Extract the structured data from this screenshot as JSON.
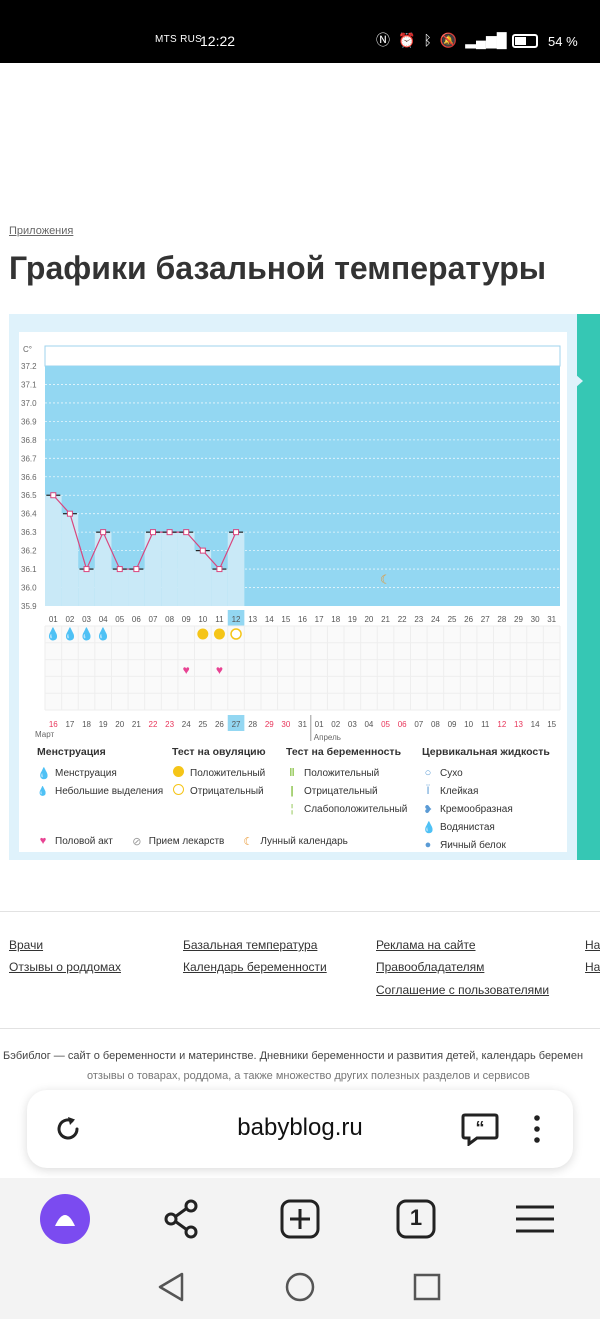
{
  "status_bar": {
    "carrier": "MTS RUS",
    "time": "12:22",
    "battery": "54 %"
  },
  "page": {
    "breadcrumb": "Приложения",
    "title": "Графики базальной температуры"
  },
  "chart_data": {
    "type": "line",
    "title": "",
    "ylabel": "C°",
    "ylim": [
      35.9,
      37.2
    ],
    "y_ticks": [
      "37.2",
      "37.1",
      "37.0",
      "36.9",
      "36.8",
      "36.7",
      "36.6",
      "36.5",
      "36.4",
      "36.3",
      "36.2",
      "36.1",
      "36.0",
      "35.9"
    ],
    "x_days": [
      "01",
      "02",
      "03",
      "04",
      "05",
      "06",
      "07",
      "08",
      "09",
      "10",
      "11",
      "12",
      "13",
      "14",
      "15",
      "16",
      "17",
      "18",
      "19",
      "20",
      "21",
      "22",
      "23",
      "24",
      "25",
      "26",
      "27",
      "28",
      "29",
      "30",
      "31"
    ],
    "highlighted_day": "12",
    "date_labels": [
      "16",
      "17",
      "18",
      "19",
      "20",
      "21",
      "22",
      "23",
      "24",
      "25",
      "26",
      "27",
      "28",
      "29",
      "30",
      "31",
      "01",
      "02",
      "03",
      "04",
      "05",
      "06",
      "07",
      "08",
      "09",
      "10",
      "11",
      "12",
      "13",
      "14",
      "15"
    ],
    "red_dates": [
      "16",
      "22",
      "23",
      "29",
      "30",
      "05",
      "06",
      "12",
      "13"
    ],
    "highlighted_date": "27",
    "month_labels": [
      "Март",
      "Апрель"
    ],
    "series": [
      {
        "values": [
          36.5,
          36.4,
          36.1,
          36.3,
          36.1,
          36.1,
          36.3,
          36.3,
          36.3,
          36.2,
          36.1,
          36.3
        ]
      }
    ],
    "menstruation_days": [
      1,
      2,
      3,
      4
    ],
    "ovulation_positive_days": [
      10,
      11
    ],
    "ovulation_negative_days": [
      12
    ],
    "intercourse_days": [
      9,
      11
    ],
    "moon_day": 21
  },
  "legend": {
    "col1": {
      "header": "Менструация",
      "items": [
        "Менструация",
        "Небольшие выделения"
      ]
    },
    "col2": {
      "header": "Тест на овуляцию",
      "items": [
        "Положительный",
        "Отрицательный"
      ]
    },
    "col3": {
      "header": "Тест на беременность",
      "items": [
        "Положительный",
        "Отрицательный",
        "Слабоположительный"
      ]
    },
    "col4": {
      "header": "Цервикальная жидкость",
      "items": [
        "Сухо",
        "Клейкая",
        "Кремообразная",
        "Водянистая",
        "Яичный белок"
      ]
    },
    "bottom": [
      "Половой акт",
      "Прием лекарств",
      "Лунный календарь"
    ],
    "colors": {
      "red": "#e8353f",
      "yellow": "#f5c518",
      "green": "#8bc34a",
      "pink": "#e84393",
      "blue": "#5b9bd5",
      "orange": "#e8932a"
    }
  },
  "footer": {
    "col1": [
      "Врачи",
      "Отзывы о роддомах"
    ],
    "col2": [
      "Базальная температура",
      "Календарь беременности"
    ],
    "col3": [
      "Реклама на сайте",
      "Правообладателям",
      "Соглашение с пользователями"
    ],
    "col4": [
      "На",
      "На"
    ],
    "about": "Бэбиблог — сайт о беременности и материнстве. Дневники беременности и развития детей, календарь беремен",
    "about2": "отзывы о товарах, роддома, а также множество других полезных разделов и сервисов"
  },
  "browser": {
    "url": "babyblog.ru",
    "tab_count": "1"
  }
}
